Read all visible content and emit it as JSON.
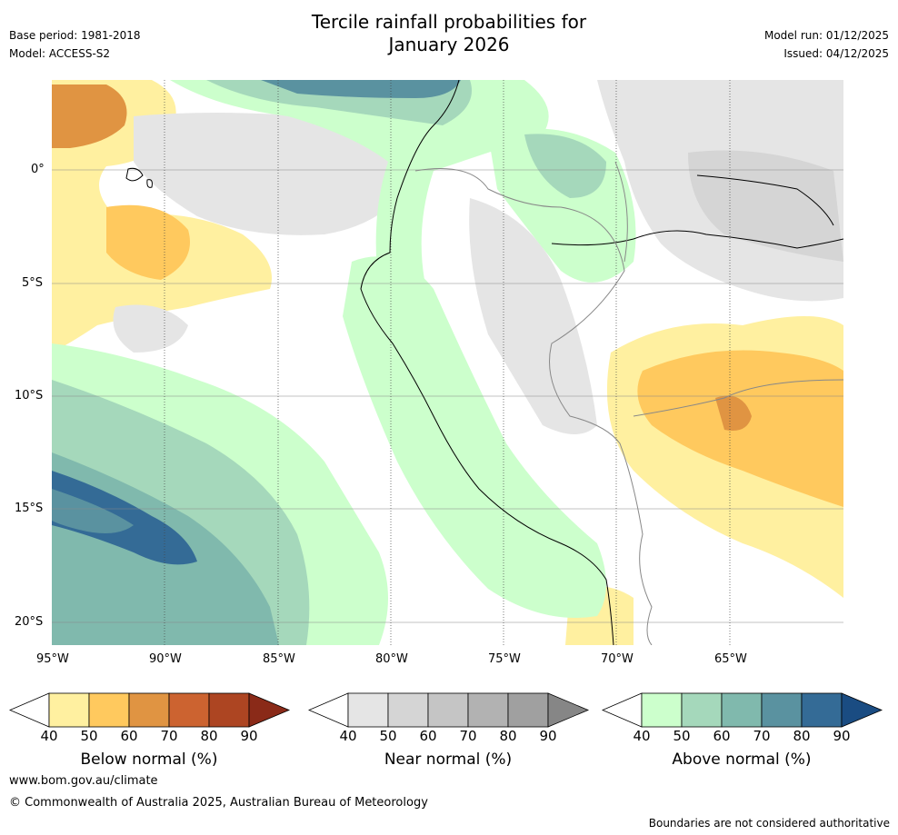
{
  "header": {
    "title_line1": "Tercile rainfall probabilities for",
    "title_line2": "January 2026",
    "base_period": "Base period: 1981-2018",
    "model": "Model: ACCESS-S2",
    "model_run": "Model run: 01/12/2025",
    "issued": "Issued: 04/12/2025"
  },
  "axes": {
    "lat_labels": [
      "0°",
      "5°S",
      "10°S",
      "15°S",
      "20°S"
    ],
    "lon_labels": [
      "95°W",
      "90°W",
      "85°W",
      "80°W",
      "75°W",
      "70°W",
      "65°W"
    ]
  },
  "colorbars": [
    {
      "label": "Below normal (%)",
      "ticks": [
        "40",
        "50",
        "60",
        "70",
        "80",
        "90"
      ],
      "colors": [
        "#ffffff",
        "#fff0a0",
        "#ffc95e",
        "#e09442",
        "#cc6330",
        "#ad4522",
        "#8a2a18"
      ]
    },
    {
      "label": "Near normal (%)",
      "ticks": [
        "40",
        "50",
        "60",
        "70",
        "80",
        "90"
      ],
      "colors": [
        "#ffffff",
        "#e5e5e5",
        "#d5d5d5",
        "#c5c5c5",
        "#b2b2b2",
        "#a0a0a0",
        "#868686"
      ]
    },
    {
      "label": "Above normal (%)",
      "ticks": [
        "40",
        "50",
        "60",
        "70",
        "80",
        "90"
      ],
      "colors": [
        "#ffffff",
        "#ccffcc",
        "#a5d8bb",
        "#80b9ad",
        "#5a92a0",
        "#346b96",
        "#1a4c82"
      ]
    }
  ],
  "footer": {
    "website": "www.bom.gov.au/climate",
    "copyright": "© Commonwealth of Australia 2025, Australian Bureau of Meteorology",
    "disclaimer": "Boundaries are not considered authoritative"
  }
}
